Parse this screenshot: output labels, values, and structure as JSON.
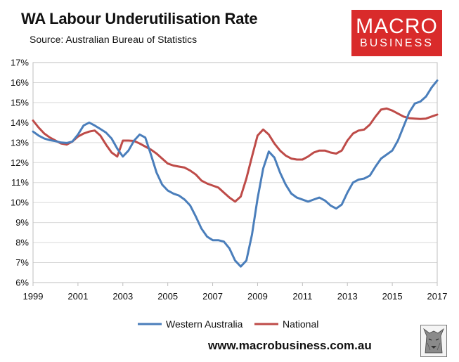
{
  "header": {
    "title": "WA Labour Underutilisation Rate",
    "subtitle": "Source: Australian Bureau of Statistics"
  },
  "logo": {
    "line1": "MACRO",
    "line2": "BUSINESS"
  },
  "footer": {
    "url": "www.macrobusiness.com.au"
  },
  "colors": {
    "wa": "#4a7ebb",
    "national": "#be4b48",
    "logo_bg": "#d92b2b",
    "grid": "#d9d9d9"
  },
  "chart_data": {
    "type": "line",
    "title": "WA Labour Underutilisation Rate",
    "xlabel": "",
    "ylabel": "",
    "xlim": [
      1999,
      2017
    ],
    "ylim": [
      6,
      17
    ],
    "x_ticks": [
      "1999",
      "2001",
      "2003",
      "2005",
      "2007",
      "2009",
      "2011",
      "2013",
      "2015",
      "2017"
    ],
    "y_ticks": [
      "6%",
      "7%",
      "8%",
      "9%",
      "10%",
      "11%",
      "12%",
      "13%",
      "14%",
      "15%",
      "16%",
      "17%"
    ],
    "legend": {
      "position": "bottom"
    },
    "grid": true,
    "series": [
      {
        "name": "Western Australia",
        "x": [
          1999,
          1999.25,
          1999.5,
          1999.75,
          2000,
          2000.25,
          2000.5,
          2000.75,
          2001,
          2001.25,
          2001.5,
          2001.75,
          2002,
          2002.25,
          2002.5,
          2002.75,
          2003,
          2003.25,
          2003.5,
          2003.75,
          2004,
          2004.25,
          2004.5,
          2004.75,
          2005,
          2005.25,
          2005.5,
          2005.75,
          2006,
          2006.25,
          2006.5,
          2006.75,
          2007,
          2007.25,
          2007.5,
          2007.75,
          2008,
          2008.25,
          2008.5,
          2008.75,
          2009,
          2009.25,
          2009.5,
          2009.75,
          2010,
          2010.25,
          2010.5,
          2010.75,
          2011,
          2011.25,
          2011.5,
          2011.75,
          2012,
          2012.25,
          2012.5,
          2012.75,
          2013,
          2013.25,
          2013.5,
          2013.75,
          2014,
          2014.25,
          2014.5,
          2014.75,
          2015,
          2015.25,
          2015.5,
          2015.75,
          2016,
          2016.25,
          2016.5,
          2016.75,
          2017
        ],
        "values": [
          13.55,
          13.35,
          13.2,
          13.12,
          13.07,
          13.0,
          12.98,
          13.05,
          13.4,
          13.85,
          14.0,
          13.85,
          13.68,
          13.5,
          13.2,
          12.7,
          12.3,
          12.6,
          13.1,
          13.4,
          13.25,
          12.4,
          11.5,
          10.9,
          10.6,
          10.45,
          10.35,
          10.15,
          9.85,
          9.3,
          8.7,
          8.3,
          8.12,
          8.12,
          8.05,
          7.7,
          7.1,
          6.8,
          7.1,
          8.4,
          10.2,
          11.7,
          12.55,
          12.25,
          11.5,
          10.9,
          10.45,
          10.25,
          10.15,
          10.05,
          10.15,
          10.25,
          10.1,
          9.85,
          9.7,
          9.9,
          10.5,
          11.0,
          11.15,
          11.2,
          11.35,
          11.8,
          12.2,
          12.4,
          12.6,
          13.1,
          13.8,
          14.5,
          14.95,
          15.05,
          15.3,
          15.75,
          16.1
        ]
      },
      {
        "name": "National",
        "x": [
          1999,
          1999.25,
          1999.5,
          1999.75,
          2000,
          2000.25,
          2000.5,
          2000.75,
          2001,
          2001.25,
          2001.5,
          2001.75,
          2002,
          2002.25,
          2002.5,
          2002.75,
          2003,
          2003.25,
          2003.5,
          2003.75,
          2004,
          2004.25,
          2004.5,
          2004.75,
          2005,
          2005.25,
          2005.5,
          2005.75,
          2006,
          2006.25,
          2006.5,
          2006.75,
          2007,
          2007.25,
          2007.5,
          2007.75,
          2008,
          2008.25,
          2008.5,
          2008.75,
          2009,
          2009.25,
          2009.5,
          2009.75,
          2010,
          2010.25,
          2010.5,
          2010.75,
          2011,
          2011.25,
          2011.5,
          2011.75,
          2012,
          2012.25,
          2012.5,
          2012.75,
          2013,
          2013.25,
          2013.5,
          2013.75,
          2014,
          2014.25,
          2014.5,
          2014.75,
          2015,
          2015.25,
          2015.5,
          2015.75,
          2016,
          2016.25,
          2016.5,
          2016.75,
          2017
        ],
        "values": [
          14.1,
          13.75,
          13.45,
          13.25,
          13.1,
          12.95,
          12.9,
          13.05,
          13.3,
          13.45,
          13.55,
          13.6,
          13.35,
          12.9,
          12.5,
          12.3,
          13.1,
          13.1,
          13.08,
          12.95,
          12.8,
          12.65,
          12.45,
          12.2,
          11.95,
          11.85,
          11.8,
          11.75,
          11.6,
          11.4,
          11.1,
          10.95,
          10.85,
          10.75,
          10.5,
          10.25,
          10.05,
          10.3,
          11.2,
          12.3,
          13.35,
          13.65,
          13.4,
          12.95,
          12.6,
          12.35,
          12.2,
          12.15,
          12.15,
          12.3,
          12.5,
          12.6,
          12.6,
          12.5,
          12.45,
          12.6,
          13.1,
          13.45,
          13.6,
          13.65,
          13.9,
          14.3,
          14.65,
          14.7,
          14.6,
          14.45,
          14.3,
          14.22,
          14.2,
          14.18,
          14.2,
          14.3,
          14.4
        ]
      }
    ]
  }
}
